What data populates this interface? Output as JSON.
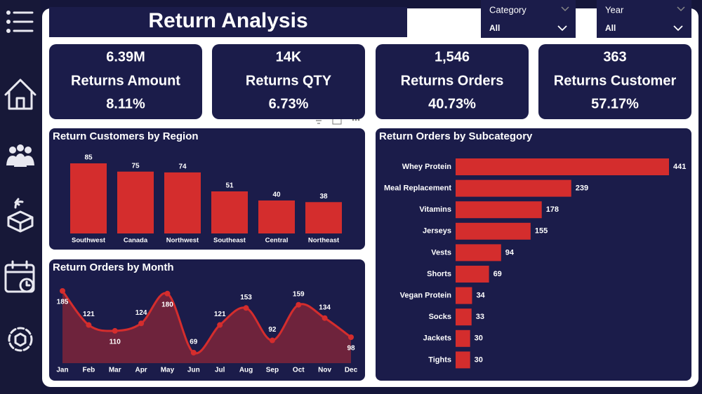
{
  "header": {
    "title": "Return Analysis"
  },
  "filters": [
    {
      "label": "Category",
      "value": "All"
    },
    {
      "label": "Year",
      "value": "All"
    }
  ],
  "kpis": [
    {
      "value": "6.39M",
      "label": "Returns Amount",
      "percent": "8.11%"
    },
    {
      "value": "14K",
      "label": "Returns QTY",
      "percent": "6.73%"
    },
    {
      "value": "1,546",
      "label": "Returns Orders",
      "percent": "40.73%"
    },
    {
      "value": "363",
      "label": "Returns Customer",
      "percent": "57.17%"
    }
  ],
  "chart_data": [
    {
      "type": "bar",
      "title": "Return Customers by Region",
      "categories": [
        "Southwest",
        "Canada",
        "Northwest",
        "Southeast",
        "Central",
        "Northeast"
      ],
      "values": [
        85,
        75,
        74,
        51,
        40,
        38
      ],
      "color": "#d42d2d"
    },
    {
      "type": "area",
      "title": "Return Orders by Month",
      "categories": [
        "Jan",
        "Feb",
        "Mar",
        "Apr",
        "May",
        "Jun",
        "Jul",
        "Aug",
        "Sep",
        "Oct",
        "Nov",
        "Dec"
      ],
      "values": [
        185,
        121,
        110,
        124,
        180,
        69,
        121,
        153,
        92,
        159,
        134,
        98
      ],
      "color": "#d42d2d"
    },
    {
      "type": "hbar",
      "title": "Return Orders by Subcategory",
      "categories": [
        "Whey Protein",
        "Meal Replacement",
        "Vitamins",
        "Jerseys",
        "Vests",
        "Shorts",
        "Vegan Protein",
        "Socks",
        "Jackets",
        "Tights"
      ],
      "values": [
        441,
        239,
        178,
        155,
        94,
        69,
        34,
        33,
        30,
        30
      ],
      "color": "#d42d2d"
    }
  ]
}
